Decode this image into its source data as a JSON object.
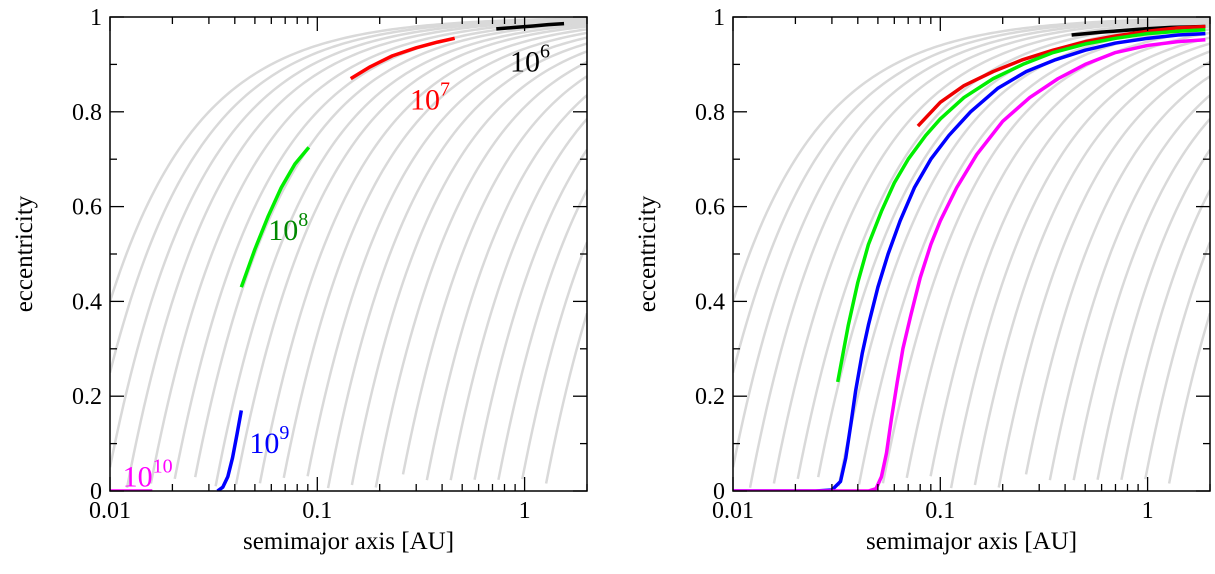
{
  "chart_data": [
    {
      "type": "line",
      "xscale": "log",
      "xlim": [
        0.01,
        2
      ],
      "ylim": [
        0,
        1
      ],
      "xlabel": "semimajor axis [AU]",
      "ylabel": "eccentricity",
      "x_ticks": [
        {
          "value": 0.01,
          "label": "0.01"
        },
        {
          "value": 0.1,
          "label": "0.1"
        },
        {
          "value": 1,
          "label": "1"
        }
      ],
      "y_ticks": [
        {
          "value": 0,
          "label": "0"
        },
        {
          "value": 0.2,
          "label": "0.2"
        },
        {
          "value": 0.4,
          "label": "0.4"
        },
        {
          "value": 0.6,
          "label": "0.6"
        },
        {
          "value": 0.8,
          "label": "0.8"
        },
        {
          "value": 1,
          "label": "1"
        }
      ],
      "background_q_values": [
        0.006,
        0.0075,
        0.0095,
        0.012,
        0.0155,
        0.02,
        0.025,
        0.032,
        0.04,
        0.052,
        0.067,
        0.087,
        0.112,
        0.145,
        0.19,
        0.25,
        0.33,
        0.43,
        0.56,
        0.73,
        0.95,
        1.25
      ],
      "series": [
        {
          "color": "#000000",
          "x": [
            0.73,
            0.9,
            1.1,
            1.3,
            1.55
          ],
          "y": [
            0.975,
            0.978,
            0.981,
            0.984,
            0.986
          ]
        },
        {
          "color": "#ff0000",
          "x": [
            0.145,
            0.18,
            0.23,
            0.3,
            0.38,
            0.46
          ],
          "y": [
            0.87,
            0.895,
            0.918,
            0.935,
            0.947,
            0.955
          ]
        },
        {
          "color": "#00ee00",
          "x": [
            0.043,
            0.05,
            0.058,
            0.067,
            0.078,
            0.091
          ],
          "y": [
            0.43,
            0.51,
            0.58,
            0.64,
            0.69,
            0.725
          ]
        },
        {
          "color": "#0000ff",
          "x": [
            0.033,
            0.035,
            0.037,
            0.039,
            0.041,
            0.043
          ],
          "y": [
            0.0,
            0.008,
            0.03,
            0.07,
            0.12,
            0.17
          ]
        },
        {
          "color": "#ff00ff",
          "x": [
            0.01,
            0.016
          ],
          "y": [
            0.0,
            0.0
          ]
        }
      ],
      "annotations": [
        {
          "base": "10",
          "exp": "6",
          "color": "#000000",
          "x": 0.85,
          "y": 0.885
        },
        {
          "base": "10",
          "exp": "7",
          "color": "#ff0000",
          "x": 0.28,
          "y": 0.805
        },
        {
          "base": "10",
          "exp": "8",
          "color": "#008800",
          "x": 0.058,
          "y": 0.53
        },
        {
          "base": "10",
          "exp": "9",
          "color": "#0000ff",
          "x": 0.047,
          "y": 0.08
        },
        {
          "base": "10",
          "exp": "10",
          "color": "#ff00ff",
          "x": 0.0115,
          "y": 0.01
        }
      ]
    },
    {
      "type": "line",
      "xscale": "log",
      "xlim": [
        0.01,
        2
      ],
      "ylim": [
        0,
        1
      ],
      "xlabel": "semimajor axis [AU]",
      "ylabel": "eccentricity",
      "x_ticks": [
        {
          "value": 0.01,
          "label": "0.01"
        },
        {
          "value": 0.1,
          "label": "0.1"
        },
        {
          "value": 1,
          "label": "1"
        }
      ],
      "y_ticks": [
        {
          "value": 0,
          "label": "0"
        },
        {
          "value": 0.2,
          "label": "0.2"
        },
        {
          "value": 0.4,
          "label": "0.4"
        },
        {
          "value": 0.6,
          "label": "0.6"
        },
        {
          "value": 0.8,
          "label": "0.8"
        },
        {
          "value": 1,
          "label": "1"
        }
      ],
      "background_q_values": [
        0.006,
        0.0075,
        0.0095,
        0.012,
        0.0155,
        0.02,
        0.025,
        0.032,
        0.04,
        0.052,
        0.067,
        0.087,
        0.112,
        0.145,
        0.19,
        0.25,
        0.33,
        0.43,
        0.56,
        0.73,
        0.95,
        1.25
      ],
      "series": [
        {
          "color": "#000000",
          "x": [
            0.43,
            0.6,
            0.9,
            1.3,
            1.9
          ],
          "y": [
            0.962,
            0.968,
            0.974,
            0.978,
            0.98
          ]
        },
        {
          "color": "#ee0000",
          "x": [
            0.078,
            0.1,
            0.13,
            0.18,
            0.25,
            0.35,
            0.5,
            0.7,
            1.0,
            1.4,
            1.9
          ],
          "y": [
            0.77,
            0.82,
            0.855,
            0.885,
            0.91,
            0.93,
            0.948,
            0.96,
            0.97,
            0.977,
            0.98
          ]
        },
        {
          "color": "#00ee00",
          "x": [
            0.032,
            0.036,
            0.04,
            0.045,
            0.052,
            0.06,
            0.07,
            0.085,
            0.1,
            0.13,
            0.18,
            0.25,
            0.35,
            0.5,
            0.7,
            1.0,
            1.4,
            1.9
          ],
          "y": [
            0.23,
            0.35,
            0.44,
            0.52,
            0.59,
            0.65,
            0.7,
            0.75,
            0.785,
            0.83,
            0.87,
            0.9,
            0.925,
            0.943,
            0.955,
            0.965,
            0.97,
            0.973
          ]
        },
        {
          "color": "#0000ff",
          "x": [
            0.01,
            0.025,
            0.03,
            0.033,
            0.035,
            0.037,
            0.039,
            0.042,
            0.045,
            0.05,
            0.056,
            0.064,
            0.075,
            0.09,
            0.11,
            0.14,
            0.19,
            0.26,
            0.36,
            0.5,
            0.7,
            1.0,
            1.4,
            1.9
          ],
          "y": [
            0.0,
            0.0,
            0.002,
            0.02,
            0.07,
            0.14,
            0.21,
            0.29,
            0.35,
            0.43,
            0.5,
            0.57,
            0.64,
            0.7,
            0.75,
            0.8,
            0.85,
            0.885,
            0.91,
            0.93,
            0.945,
            0.955,
            0.962,
            0.965
          ]
        },
        {
          "color": "#ff00ff",
          "x": [
            0.01,
            0.03,
            0.045,
            0.049,
            0.052,
            0.055,
            0.058,
            0.062,
            0.066,
            0.072,
            0.08,
            0.09,
            0.1,
            0.12,
            0.15,
            0.2,
            0.27,
            0.37,
            0.5,
            0.7,
            1.0,
            1.4,
            1.9
          ],
          "y": [
            0.0,
            0.0,
            0.0,
            0.005,
            0.03,
            0.08,
            0.15,
            0.23,
            0.3,
            0.37,
            0.45,
            0.52,
            0.57,
            0.64,
            0.71,
            0.78,
            0.83,
            0.87,
            0.9,
            0.925,
            0.94,
            0.948,
            0.952
          ]
        }
      ]
    }
  ]
}
